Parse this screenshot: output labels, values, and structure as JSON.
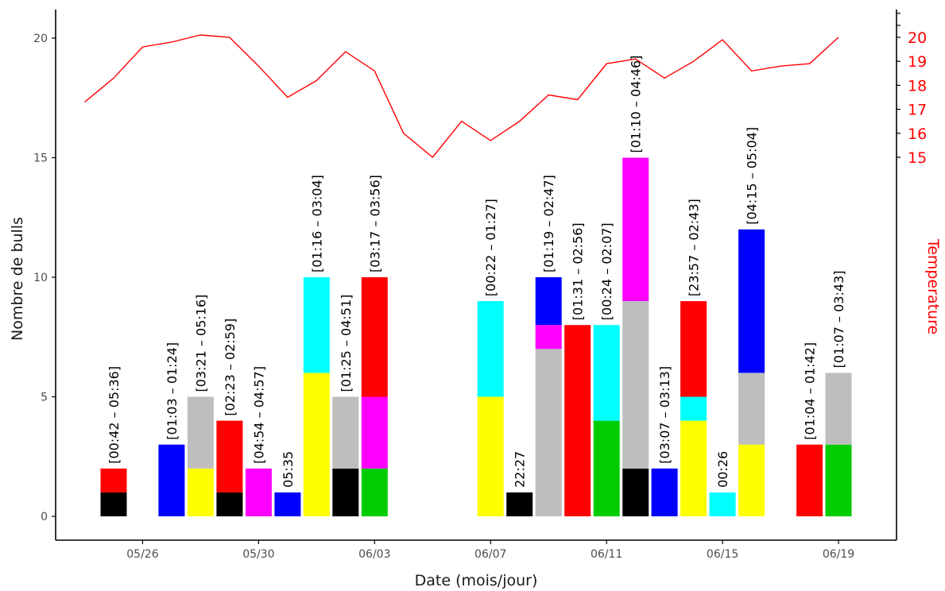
{
  "chart_data": {
    "type": "bar",
    "xlabel": "Date (mois/jour)",
    "ylabel": "Nombre de bulls",
    "y2label": "Temperature",
    "ylim": [
      0,
      21
    ],
    "y2lim": [
      14.6,
      20.9
    ],
    "xlim": [
      "05/23",
      "06/21"
    ],
    "x_ticks": [
      "05/26",
      "05/30",
      "06/03",
      "06/07",
      "06/11",
      "06/15",
      "06/19"
    ],
    "y_ticks": [
      0,
      5,
      10,
      15,
      20
    ],
    "y2_ticks": [
      15,
      16,
      17,
      18,
      19,
      20
    ],
    "grid": false,
    "colors": {
      "black": "#000000",
      "red": "#ff0000",
      "blue": "#0000ff",
      "yellow": "#ffff00",
      "grey": "#bebebe",
      "magenta": "#ff00ff",
      "cyan": "#00ffff",
      "green": "#00cd00",
      "temperature_line": "#ff0000",
      "axis": "#000000"
    },
    "bars": [
      {
        "date": "05/25",
        "label": "[00:42 – 05:36]",
        "segments": [
          {
            "color": "black",
            "value": 1
          },
          {
            "color": "red",
            "value": 1
          }
        ]
      },
      {
        "date": "05/27",
        "label": "[01:03 – 01:24]",
        "segments": [
          {
            "color": "blue",
            "value": 3
          }
        ]
      },
      {
        "date": "05/28",
        "label": "[03:21 – 05:16]",
        "segments": [
          {
            "color": "yellow",
            "value": 2
          },
          {
            "color": "grey",
            "value": 3
          }
        ]
      },
      {
        "date": "05/29",
        "label": "[02:23 – 02:59]",
        "segments": [
          {
            "color": "black",
            "value": 1
          },
          {
            "color": "red",
            "value": 3
          }
        ]
      },
      {
        "date": "05/30",
        "label": "[04:54 – 04:57]",
        "segments": [
          {
            "color": "magenta",
            "value": 2
          }
        ]
      },
      {
        "date": "05/31",
        "label": "05:35",
        "segments": [
          {
            "color": "blue",
            "value": 1
          }
        ]
      },
      {
        "date": "06/01",
        "label": "[01:16 – 03:04]",
        "segments": [
          {
            "color": "yellow",
            "value": 6
          },
          {
            "color": "cyan",
            "value": 4
          }
        ]
      },
      {
        "date": "06/02",
        "label": "[01:25 – 04:51]",
        "segments": [
          {
            "color": "black",
            "value": 2
          },
          {
            "color": "grey",
            "value": 3
          }
        ]
      },
      {
        "date": "06/03",
        "label": "[03:17 – 03:56]",
        "segments": [
          {
            "color": "green",
            "value": 2
          },
          {
            "color": "magenta",
            "value": 3
          },
          {
            "color": "red",
            "value": 5
          }
        ]
      },
      {
        "date": "06/07",
        "label": "[00:22 – 01:27]",
        "segments": [
          {
            "color": "yellow",
            "value": 5
          },
          {
            "color": "cyan",
            "value": 4
          }
        ]
      },
      {
        "date": "06/08",
        "label": "22:27",
        "segments": [
          {
            "color": "black",
            "value": 1
          }
        ]
      },
      {
        "date": "06/09",
        "label": "[01:19 – 02:47]",
        "segments": [
          {
            "color": "grey",
            "value": 7
          },
          {
            "color": "magenta",
            "value": 1
          },
          {
            "color": "blue",
            "value": 2
          }
        ]
      },
      {
        "date": "06/10",
        "label": "[01:31 – 02:56]",
        "segments": [
          {
            "color": "red",
            "value": 8
          }
        ]
      },
      {
        "date": "06/11",
        "label": "[00:24 – 02:07]",
        "segments": [
          {
            "color": "green",
            "value": 4
          },
          {
            "color": "cyan",
            "value": 4
          }
        ]
      },
      {
        "date": "06/12",
        "label": "[01:10 – 04:46]",
        "segments": [
          {
            "color": "black",
            "value": 2
          },
          {
            "color": "grey",
            "value": 7
          },
          {
            "color": "magenta",
            "value": 6
          }
        ]
      },
      {
        "date": "06/13",
        "label": "[03:07 – 03:13]",
        "segments": [
          {
            "color": "blue",
            "value": 2
          }
        ]
      },
      {
        "date": "06/14",
        "label": "[23:57 – 02:43]",
        "segments": [
          {
            "color": "yellow",
            "value": 4
          },
          {
            "color": "cyan",
            "value": 1
          },
          {
            "color": "red",
            "value": 4
          }
        ]
      },
      {
        "date": "06/15",
        "label": "00:26",
        "segments": [
          {
            "color": "cyan",
            "value": 1
          }
        ]
      },
      {
        "date": "06/16",
        "label": "[04:15 – 05:04]",
        "segments": [
          {
            "color": "yellow",
            "value": 3
          },
          {
            "color": "grey",
            "value": 3
          },
          {
            "color": "blue",
            "value": 6
          }
        ]
      },
      {
        "date": "06/18",
        "label": "[01:04 – 01:42]",
        "segments": [
          {
            "color": "red",
            "value": 3
          }
        ]
      },
      {
        "date": "06/19",
        "label": "[01:07 – 03:43]",
        "segments": [
          {
            "color": "green",
            "value": 3
          },
          {
            "color": "grey",
            "value": 3
          }
        ]
      }
    ],
    "temperature": {
      "x": [
        "05/24",
        "05/25",
        "05/26",
        "05/27",
        "05/28",
        "05/29",
        "05/30",
        "05/31",
        "06/01",
        "06/02",
        "06/03",
        "06/04",
        "06/05",
        "06/06",
        "06/07",
        "06/08",
        "06/09",
        "06/10",
        "06/11",
        "06/12",
        "06/13",
        "06/14",
        "06/15",
        "06/16",
        "06/17",
        "06/18",
        "06/19"
      ],
      "y": [
        17.3,
        18.3,
        19.6,
        19.8,
        20.1,
        20.0,
        18.8,
        17.5,
        18.2,
        19.4,
        18.6,
        16.0,
        15.0,
        16.5,
        15.7,
        16.5,
        17.6,
        17.4,
        18.9,
        19.1,
        18.3,
        19.0,
        19.9,
        18.6,
        18.8,
        18.9,
        20.0
      ]
    }
  }
}
